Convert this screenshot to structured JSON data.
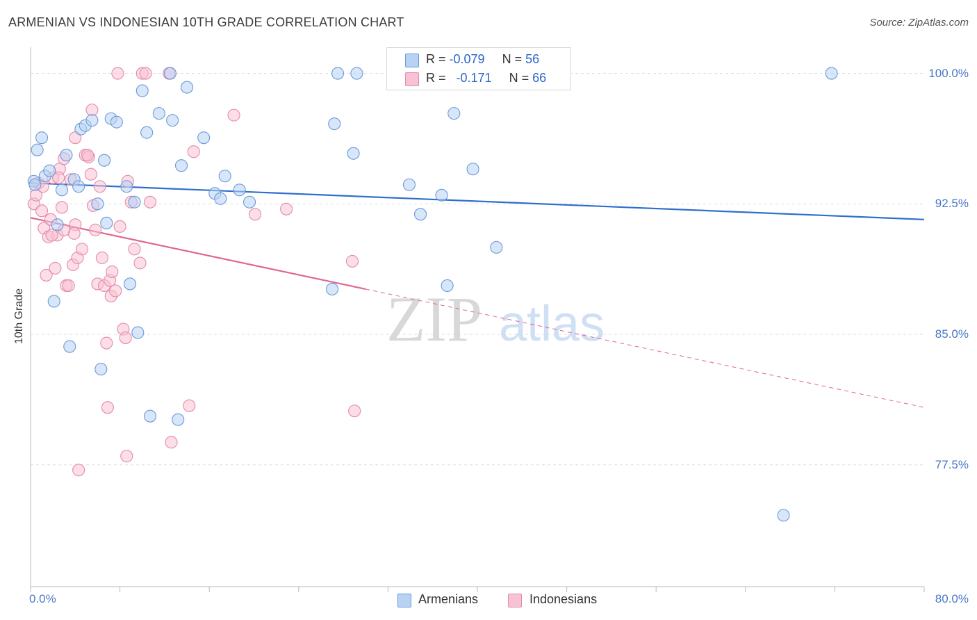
{
  "header": {
    "title": "ARMENIAN VS INDONESIAN 10TH GRADE CORRELATION CHART",
    "source": "Source: ZipAtlas.com"
  },
  "watermark": {
    "zip": "ZIP",
    "atlas": "atlas"
  },
  "colors": {
    "armenian_fill": "#b8d2f4",
    "armenian_stroke": "#6a9ad8",
    "armenian_line": "#2f6fcc",
    "indonesian_fill": "#f7c3d4",
    "indonesian_stroke": "#e58aa8",
    "indonesian_line": "#e06690",
    "tick_text": "#4a78c8",
    "grid": "#dddddd"
  },
  "legend": {
    "armenian": {
      "r_label": "R = ",
      "r_value": "-0.079",
      "n_label": "N = ",
      "n_value": "56"
    },
    "indonesian": {
      "r_label": "R = ",
      "r_value": "-0.171",
      "n_label": "N = ",
      "n_value": "66"
    }
  },
  "chart_data": {
    "type": "scatter",
    "title": "ARMENIAN VS INDONESIAN 10TH GRADE CORRELATION CHART",
    "xlabel": "",
    "ylabel": "10th Grade",
    "xlim": [
      0,
      80
    ],
    "ylim": [
      70.5,
      101.5
    ],
    "x_tick_labels": [
      "0.0%",
      "80.0%"
    ],
    "y_ticks": [
      77.5,
      85.0,
      92.5,
      100.0
    ],
    "y_tick_labels": [
      "77.5%",
      "85.0%",
      "92.5%",
      "100.0%"
    ],
    "grid": true,
    "legend_placement": "bottom-center",
    "series": [
      {
        "name": "Armenians",
        "r": -0.079,
        "n": 56,
        "trend": {
          "x": [
            0,
            80
          ],
          "y": [
            93.7,
            91.6
          ]
        },
        "points": [
          [
            0.3,
            93.8
          ],
          [
            0.6,
            95.6
          ],
          [
            1.0,
            96.3
          ],
          [
            1.3,
            94.1
          ],
          [
            1.7,
            94.4
          ],
          [
            2.1,
            86.9
          ],
          [
            2.4,
            91.3
          ],
          [
            2.8,
            93.3
          ],
          [
            3.2,
            95.3
          ],
          [
            3.5,
            84.3
          ],
          [
            3.9,
            93.9
          ],
          [
            4.3,
            93.5
          ],
          [
            4.5,
            96.8
          ],
          [
            4.9,
            97.0
          ],
          [
            5.5,
            97.3
          ],
          [
            6.0,
            92.5
          ],
          [
            6.3,
            83.0
          ],
          [
            6.6,
            95.0
          ],
          [
            6.8,
            91.4
          ],
          [
            7.2,
            97.4
          ],
          [
            7.7,
            97.2
          ],
          [
            8.6,
            93.5
          ],
          [
            8.9,
            87.9
          ],
          [
            9.3,
            92.6
          ],
          [
            9.6,
            85.1
          ],
          [
            10.0,
            99.0
          ],
          [
            10.4,
            96.6
          ],
          [
            10.7,
            80.3
          ],
          [
            11.5,
            97.7
          ],
          [
            12.5,
            100.0
          ],
          [
            12.7,
            97.3
          ],
          [
            13.2,
            80.1
          ],
          [
            13.5,
            94.7
          ],
          [
            14.0,
            99.2
          ],
          [
            15.5,
            96.3
          ],
          [
            16.5,
            93.1
          ],
          [
            17.0,
            92.8
          ],
          [
            17.4,
            94.1
          ],
          [
            18.7,
            93.3
          ],
          [
            19.6,
            92.6
          ],
          [
            27.0,
            87.6
          ],
          [
            27.2,
            97.1
          ],
          [
            27.5,
            100.0
          ],
          [
            28.9,
            95.4
          ],
          [
            29.2,
            100.0
          ],
          [
            32.9,
            100.0
          ],
          [
            33.9,
            93.6
          ],
          [
            34.9,
            91.9
          ],
          [
            36.8,
            93.0
          ],
          [
            37.3,
            87.8
          ],
          [
            37.9,
            97.7
          ],
          [
            39.6,
            94.5
          ],
          [
            41.7,
            90.0
          ],
          [
            67.4,
            74.6
          ],
          [
            71.7,
            100.0
          ],
          [
            0.4,
            93.6
          ]
        ]
      },
      {
        "name": "Indonesians",
        "r": -0.171,
        "n": 66,
        "trend": {
          "x": [
            0,
            30
          ],
          "y": [
            91.7,
            87.6
          ]
        },
        "trend_extension": {
          "x": [
            30,
            80
          ],
          "y": [
            87.6,
            80.8
          ]
        },
        "points": [
          [
            0.3,
            92.5
          ],
          [
            0.5,
            93.0
          ],
          [
            0.7,
            93.7
          ],
          [
            1.0,
            92.1
          ],
          [
            1.2,
            91.1
          ],
          [
            1.4,
            88.4
          ],
          [
            1.6,
            90.6
          ],
          [
            1.8,
            91.6
          ],
          [
            2.0,
            94.0
          ],
          [
            2.2,
            88.8
          ],
          [
            2.4,
            90.7
          ],
          [
            2.6,
            94.5
          ],
          [
            2.8,
            92.3
          ],
          [
            3.0,
            95.1
          ],
          [
            3.2,
            87.8
          ],
          [
            3.4,
            87.8
          ],
          [
            3.6,
            93.9
          ],
          [
            3.8,
            89.0
          ],
          [
            4.0,
            91.3
          ],
          [
            4.2,
            89.4
          ],
          [
            4.0,
            96.3
          ],
          [
            4.3,
            77.2
          ],
          [
            4.6,
            89.9
          ],
          [
            4.9,
            95.3
          ],
          [
            5.2,
            95.2
          ],
          [
            5.4,
            94.2
          ],
          [
            5.5,
            97.9
          ],
          [
            5.6,
            92.4
          ],
          [
            5.8,
            91.0
          ],
          [
            6.0,
            87.9
          ],
          [
            6.2,
            93.5
          ],
          [
            6.4,
            89.4
          ],
          [
            6.6,
            87.8
          ],
          [
            6.8,
            84.5
          ],
          [
            6.9,
            80.8
          ],
          [
            7.1,
            88.1
          ],
          [
            7.2,
            87.2
          ],
          [
            7.3,
            88.6
          ],
          [
            7.6,
            87.5
          ],
          [
            7.8,
            100.0
          ],
          [
            8.0,
            91.2
          ],
          [
            8.3,
            85.3
          ],
          [
            8.5,
            84.8
          ],
          [
            8.6,
            78.0
          ],
          [
            8.7,
            93.8
          ],
          [
            9.0,
            92.6
          ],
          [
            9.3,
            89.9
          ],
          [
            9.8,
            89.1
          ],
          [
            10.0,
            100.0
          ],
          [
            10.3,
            100.0
          ],
          [
            10.7,
            92.6
          ],
          [
            12.4,
            100.0
          ],
          [
            12.6,
            78.8
          ],
          [
            14.2,
            80.9
          ],
          [
            14.6,
            95.5
          ],
          [
            18.2,
            97.6
          ],
          [
            20.1,
            91.9
          ],
          [
            22.9,
            92.2
          ],
          [
            28.8,
            89.2
          ],
          [
            29.0,
            80.6
          ],
          [
            3.9,
            90.8
          ],
          [
            2.5,
            94.0
          ],
          [
            1.1,
            93.5
          ],
          [
            5.1,
            95.3
          ],
          [
            3.0,
            91.0
          ],
          [
            1.9,
            90.7
          ]
        ]
      }
    ]
  },
  "bottom_legend": {
    "armenians": "Armenians",
    "indonesians": "Indonesians"
  }
}
